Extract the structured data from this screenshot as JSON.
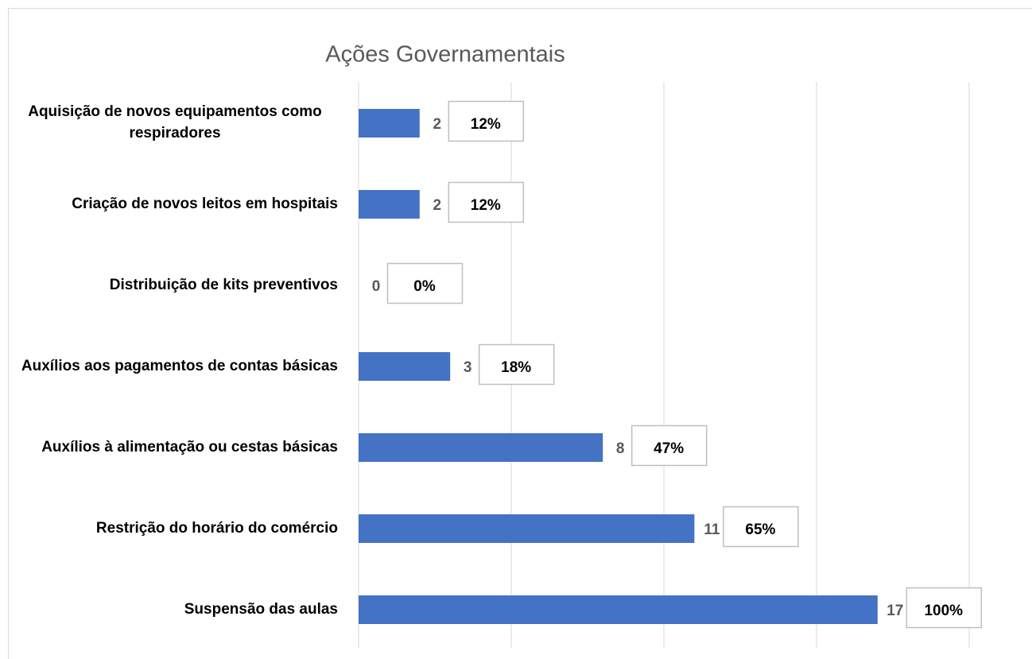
{
  "chart_data": {
    "type": "bar",
    "orientation": "horizontal",
    "title": "Ações Governamentais",
    "categories": [
      "Aquisição de novos equipamentos como respiradores",
      "Criação de novos leitos em hospitais",
      "Distribuição de kits preventivos",
      "Auxílios aos pagamentos de contas básicas",
      "Auxílios à alimentação ou cestas básicas",
      "Restrição do horário do comércio",
      "Suspensão das aulas"
    ],
    "values": [
      2,
      2,
      0,
      3,
      8,
      11,
      17
    ],
    "percentage_labels": [
      "12%",
      "12%",
      "0%",
      "18%",
      "47%",
      "65%",
      "100%"
    ],
    "color": "#4472c4",
    "xlim": [
      0,
      20
    ],
    "xticks": [
      0,
      5,
      10,
      15,
      20
    ],
    "grid": true
  }
}
